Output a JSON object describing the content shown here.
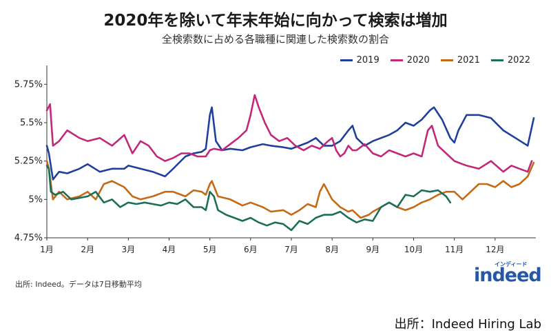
{
  "header": {
    "title": "2020年を除いて年末年始に向かって検索は増加",
    "subtitle": "全検索数に占める各職種に関連した検索数の割合"
  },
  "chart_data": {
    "type": "line",
    "title": "2020年を除いて年末年始に向かって検索は増加",
    "subtitle": "全検索数に占める各職種に関連した検索数の割合",
    "xlabel": "",
    "ylabel": "",
    "categories": [
      "1月",
      "2月",
      "3月",
      "4月",
      "5月",
      "6月",
      "7月",
      "8月",
      "9月",
      "10月",
      "11月",
      "12月"
    ],
    "ylim": [
      4.75,
      5.85
    ],
    "yticks": [
      4.75,
      5.0,
      5.25,
      5.5,
      5.75
    ],
    "ytick_labels": [
      "4.75%",
      "5%",
      "5.25%",
      "5.5%",
      "5.75%"
    ],
    "legend_position": "top-right",
    "grid": false,
    "series": [
      {
        "name": "2019",
        "color": "#1f3f9c",
        "x": [
          1.0,
          1.05,
          1.15,
          1.3,
          1.5,
          1.8,
          2.0,
          2.3,
          2.6,
          2.9,
          3.0,
          3.3,
          3.6,
          3.9,
          4.1,
          4.4,
          4.6,
          4.8,
          4.9,
          5.0,
          5.05,
          5.15,
          5.3,
          5.5,
          5.8,
          6.0,
          6.3,
          6.5,
          6.8,
          7.0,
          7.2,
          7.4,
          7.6,
          7.8,
          8.0,
          8.2,
          8.4,
          8.5,
          8.6,
          8.8,
          9.0,
          9.2,
          9.4,
          9.6,
          9.8,
          10.0,
          10.2,
          10.4,
          10.5,
          10.7,
          10.9,
          11.0,
          11.1,
          11.3,
          11.6,
          11.9,
          12.2,
          12.5,
          12.8,
          12.95
        ],
        "values": [
          5.35,
          5.3,
          5.13,
          5.18,
          5.17,
          5.2,
          5.23,
          5.18,
          5.2,
          5.2,
          5.22,
          5.2,
          5.18,
          5.15,
          5.2,
          5.28,
          5.3,
          5.31,
          5.33,
          5.55,
          5.6,
          5.38,
          5.32,
          5.33,
          5.32,
          5.34,
          5.36,
          5.35,
          5.34,
          5.33,
          5.35,
          5.37,
          5.4,
          5.35,
          5.35,
          5.38,
          5.45,
          5.48,
          5.4,
          5.35,
          5.38,
          5.4,
          5.42,
          5.45,
          5.5,
          5.48,
          5.52,
          5.58,
          5.6,
          5.52,
          5.4,
          5.37,
          5.45,
          5.55,
          5.55,
          5.53,
          5.45,
          5.4,
          5.35,
          5.53
        ]
      },
      {
        "name": "2020",
        "color": "#c2277a",
        "x": [
          1.0,
          1.08,
          1.15,
          1.3,
          1.5,
          1.8,
          2.0,
          2.3,
          2.6,
          2.9,
          3.1,
          3.3,
          3.5,
          3.7,
          3.9,
          4.1,
          4.3,
          4.5,
          4.7,
          4.9,
          5.0,
          5.1,
          5.3,
          5.5,
          5.7,
          5.9,
          6.0,
          6.1,
          6.2,
          6.35,
          6.5,
          6.7,
          6.9,
          7.1,
          7.3,
          7.5,
          7.7,
          7.9,
          8.0,
          8.1,
          8.2,
          8.3,
          8.4,
          8.5,
          8.6,
          8.8,
          9.0,
          9.2,
          9.4,
          9.6,
          9.8,
          10.0,
          10.2,
          10.35,
          10.45,
          10.6,
          10.8,
          11.0,
          11.3,
          11.6,
          11.9,
          12.2,
          12.4,
          12.6,
          12.8,
          12.9
        ],
        "values": [
          5.58,
          5.62,
          5.35,
          5.38,
          5.45,
          5.4,
          5.38,
          5.4,
          5.35,
          5.42,
          5.3,
          5.38,
          5.35,
          5.28,
          5.25,
          5.27,
          5.3,
          5.3,
          5.28,
          5.28,
          5.32,
          5.33,
          5.32,
          5.36,
          5.4,
          5.45,
          5.55,
          5.68,
          5.6,
          5.5,
          5.42,
          5.38,
          5.4,
          5.35,
          5.32,
          5.35,
          5.33,
          5.38,
          5.4,
          5.32,
          5.28,
          5.3,
          5.35,
          5.32,
          5.32,
          5.36,
          5.3,
          5.28,
          5.32,
          5.3,
          5.28,
          5.3,
          5.28,
          5.45,
          5.48,
          5.35,
          5.3,
          5.25,
          5.22,
          5.2,
          5.25,
          5.18,
          5.22,
          5.2,
          5.18,
          5.25
        ]
      },
      {
        "name": "2021",
        "color": "#c46a15",
        "x": [
          1.0,
          1.05,
          1.15,
          1.3,
          1.5,
          1.8,
          2.0,
          2.2,
          2.4,
          2.6,
          2.9,
          3.1,
          3.3,
          3.6,
          3.9,
          4.1,
          4.4,
          4.6,
          4.8,
          4.9,
          5.0,
          5.05,
          5.2,
          5.5,
          5.8,
          6.0,
          6.3,
          6.5,
          6.8,
          7.0,
          7.2,
          7.4,
          7.6,
          7.7,
          7.8,
          8.0,
          8.2,
          8.4,
          8.5,
          8.7,
          8.9,
          9.0,
          9.2,
          9.4,
          9.6,
          9.8,
          10.0,
          10.2,
          10.4,
          10.6,
          10.8,
          11.0,
          11.2,
          11.4,
          11.6,
          11.8,
          12.0,
          12.2,
          12.4,
          12.6,
          12.8,
          12.95
        ],
        "values": [
          5.25,
          5.2,
          5.0,
          5.05,
          5.0,
          5.02,
          5.05,
          5.0,
          5.1,
          5.12,
          5.08,
          5.02,
          5.0,
          5.02,
          5.05,
          5.05,
          5.02,
          5.06,
          5.05,
          5.03,
          5.1,
          5.12,
          5.02,
          5.0,
          4.96,
          4.98,
          4.95,
          4.92,
          4.93,
          4.9,
          4.93,
          4.97,
          4.95,
          5.05,
          5.1,
          5.0,
          4.95,
          4.92,
          4.93,
          4.88,
          4.9,
          4.92,
          4.95,
          4.98,
          4.95,
          4.93,
          4.95,
          4.98,
          5.0,
          5.03,
          5.05,
          5.05,
          5.0,
          5.05,
          5.1,
          5.1,
          5.08,
          5.12,
          5.08,
          5.1,
          5.15,
          5.24
        ]
      },
      {
        "name": "2022",
        "color": "#1b6f58",
        "x": [
          1.0,
          1.05,
          1.1,
          1.2,
          1.4,
          1.6,
          1.8,
          2.0,
          2.2,
          2.4,
          2.6,
          2.8,
          3.0,
          3.2,
          3.4,
          3.6,
          3.8,
          4.0,
          4.2,
          4.4,
          4.6,
          4.8,
          4.9,
          5.0,
          5.1,
          5.2,
          5.4,
          5.6,
          5.8,
          6.0,
          6.2,
          6.4,
          6.6,
          6.8,
          7.0,
          7.2,
          7.4,
          7.6,
          7.8,
          8.0,
          8.2,
          8.4,
          8.6,
          8.8,
          9.0,
          9.2,
          9.4,
          9.6,
          9.8,
          10.0,
          10.2,
          10.4,
          10.6,
          10.8,
          10.9
        ],
        "values": [
          5.22,
          5.2,
          5.05,
          5.03,
          5.05,
          5.0,
          5.01,
          5.02,
          5.05,
          4.98,
          5.0,
          4.95,
          4.98,
          4.97,
          4.98,
          4.97,
          4.96,
          4.98,
          4.97,
          5.0,
          4.95,
          4.95,
          4.93,
          5.05,
          5.02,
          4.93,
          4.9,
          4.88,
          4.86,
          4.88,
          4.85,
          4.83,
          4.85,
          4.84,
          4.8,
          4.86,
          4.84,
          4.88,
          4.9,
          4.9,
          4.92,
          4.88,
          4.85,
          4.87,
          4.86,
          4.95,
          4.98,
          4.95,
          5.03,
          5.02,
          5.06,
          5.05,
          5.06,
          5.02,
          4.98
        ]
      }
    ]
  },
  "source_note": "出所: Indeed。データは7日移動平均",
  "logo": {
    "text": "indeed",
    "kana": "インディード"
  },
  "footer": "出所：Indeed Hiring Lab"
}
